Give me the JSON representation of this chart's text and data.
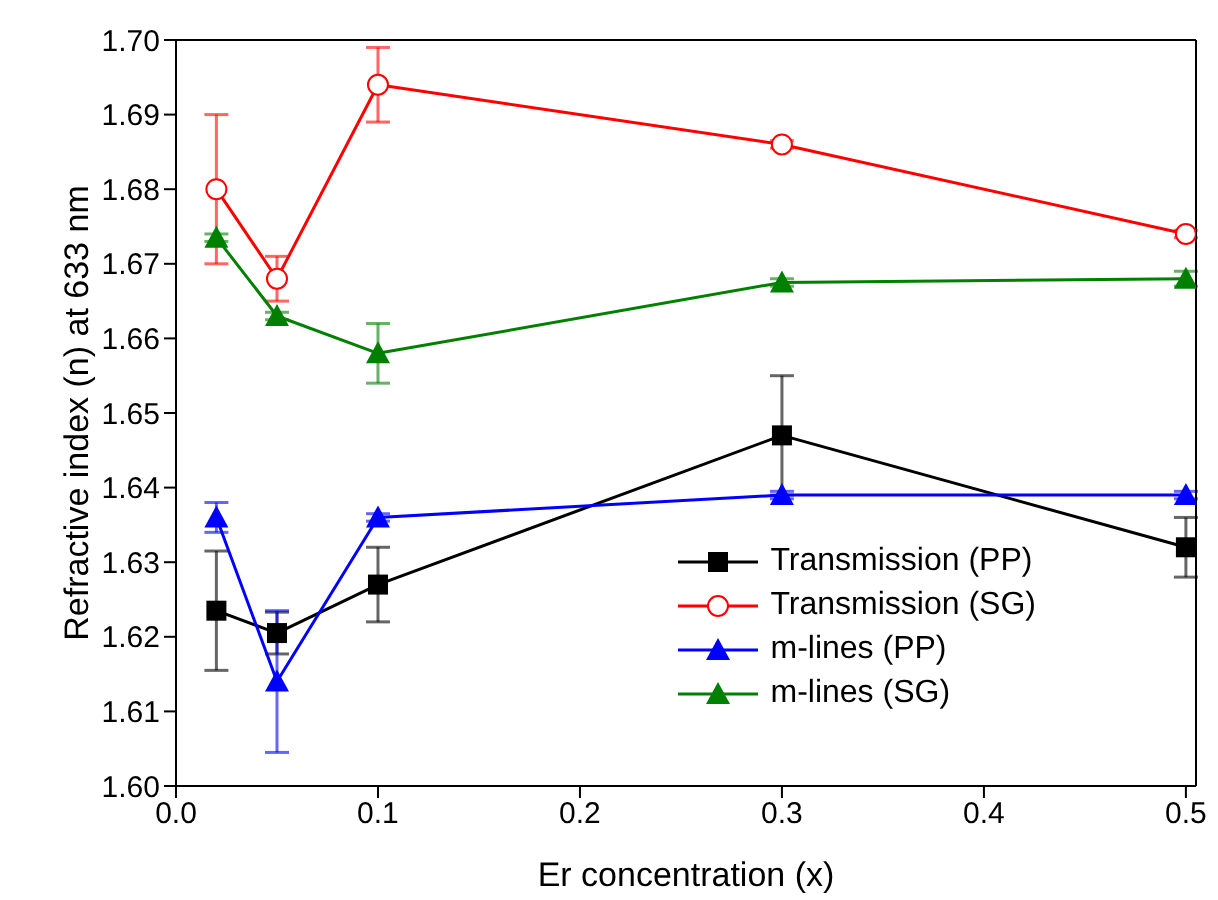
{
  "chart_data": {
    "type": "line",
    "xlabel": "Er concentration (x)",
    "ylabel": "Refractive index (n) at 633 nm",
    "x": [
      0.02,
      0.05,
      0.1,
      0.3,
      0.5
    ],
    "series": [
      {
        "name": "Transmission (PP)",
        "color": "#000000",
        "marker": "square",
        "values": [
          1.6235,
          1.6205,
          1.627,
          1.647,
          1.632
        ],
        "errors": [
          0.008,
          0.0028,
          0.005,
          0.008,
          0.004
        ]
      },
      {
        "name": "Transmission (SG)",
        "color": "#ff0000",
        "marker": "circle",
        "values": [
          1.68,
          1.668,
          1.694,
          1.686,
          1.674
        ],
        "errors": [
          0.01,
          0.003,
          0.005,
          0.0005,
          0.0005
        ]
      },
      {
        "name": "m-lines (PP)",
        "color": "#0000ff",
        "marker": "triangle",
        "values": [
          1.636,
          1.614,
          1.636,
          1.639,
          1.639
        ],
        "errors": [
          0.002,
          0.0095,
          0.0005,
          0.0005,
          0.0005
        ]
      },
      {
        "name": "m-lines (SG)",
        "color": "#008000",
        "marker": "triangle",
        "values": [
          1.6735,
          1.663,
          1.658,
          1.6675,
          1.668
        ],
        "errors": [
          0.0005,
          0.0005,
          0.004,
          0.0005,
          0.001
        ]
      }
    ],
    "xlim": [
      0,
      0.505
    ],
    "xticks": [
      {
        "value": 0,
        "label": "0.0"
      },
      0.1,
      0.2,
      0.3,
      0.4,
      0.5
    ],
    "ylim": [
      1.6,
      1.7
    ],
    "yticks": [
      {
        "value": 1.6,
        "label": "1.60"
      },
      1.61,
      1.62,
      1.63,
      1.64,
      1.65,
      1.66,
      1.67,
      1.68,
      1.69,
      {
        "value": 1.7,
        "label": "1.70"
      }
    ],
    "grid": false,
    "legend": "bottom right"
  }
}
